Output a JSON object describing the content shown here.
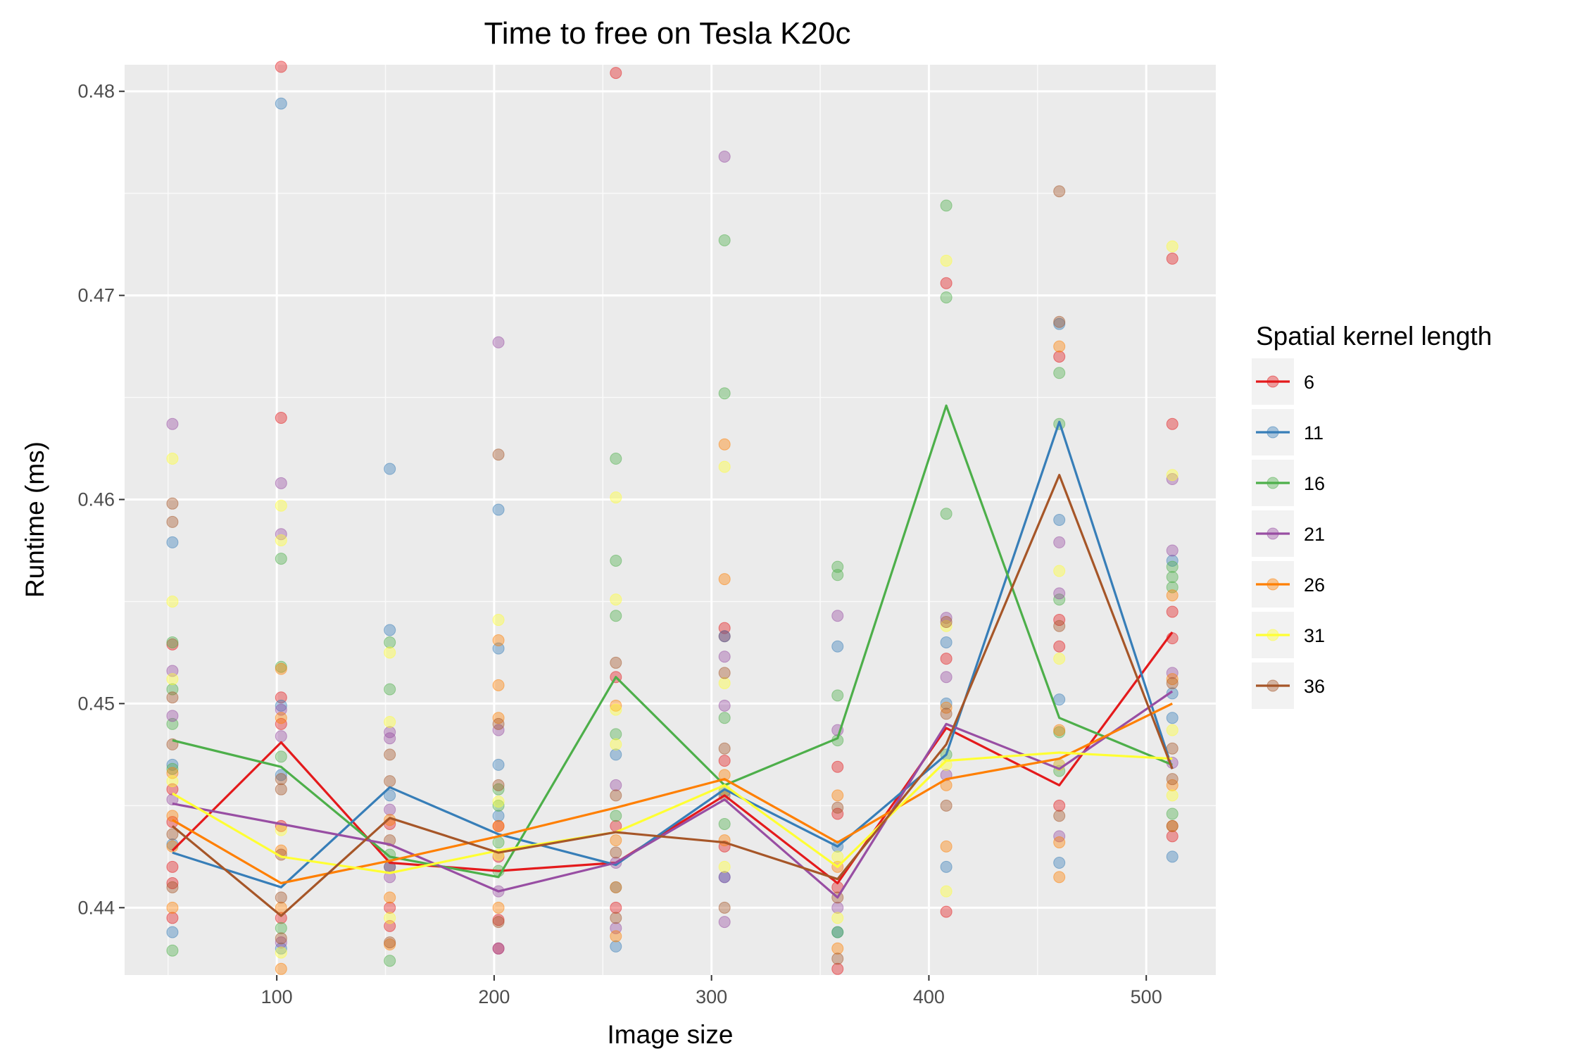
{
  "chart_data": {
    "type": "line",
    "title": "Time to free on Tesla K20c",
    "xlabel": "Image size",
    "ylabel": "Runtime (ms)",
    "xlim": [
      30,
      532
    ],
    "ylim": [
      0.4367,
      0.4813
    ],
    "xticks": [
      100,
      200,
      300,
      400,
      500
    ],
    "yticks": [
      0.44,
      0.45,
      0.46,
      0.47,
      0.48
    ],
    "xtick_labels": [
      "100",
      "200",
      "300",
      "400",
      "500"
    ],
    "ytick_labels": [
      "0.44",
      "0.45",
      "0.46",
      "0.47",
      "0.48"
    ],
    "grid": true,
    "legend": {
      "title": "Spatial kernel length",
      "position": "right"
    },
    "x": [
      52,
      102,
      152,
      202,
      256,
      306,
      358,
      408,
      460,
      512
    ],
    "series": [
      {
        "name": "6",
        "color": "#e41a1c",
        "values": [
          0.4428,
          0.4481,
          0.4422,
          0.4418,
          0.4422,
          0.4455,
          0.4412,
          0.4488,
          0.446,
          0.4535
        ]
      },
      {
        "name": "11",
        "color": "#377eb8",
        "values": [
          0.4427,
          0.441,
          0.4459,
          0.4436,
          0.4421,
          0.4458,
          0.443,
          0.4475,
          0.4638,
          0.4468
        ]
      },
      {
        "name": "16",
        "color": "#4daf4a",
        "values": [
          0.4482,
          0.4469,
          0.4425,
          0.4415,
          0.4513,
          0.446,
          0.4483,
          0.4646,
          0.4493,
          0.447
        ]
      },
      {
        "name": "21",
        "color": "#984ea3",
        "values": [
          0.4451,
          0.4441,
          0.4431,
          0.4408,
          0.4422,
          0.4453,
          0.4405,
          0.449,
          0.4468,
          0.4506
        ]
      },
      {
        "name": "26",
        "color": "#ff7f00",
        "values": [
          0.4443,
          0.4412,
          0.4423,
          0.4435,
          0.4449,
          0.4463,
          0.4432,
          0.4463,
          0.4473,
          0.45
        ]
      },
      {
        "name": "31",
        "color": "#ffff33",
        "values": [
          0.4456,
          0.4425,
          0.4417,
          0.4428,
          0.4437,
          0.446,
          0.442,
          0.4472,
          0.4476,
          0.4473
        ]
      },
      {
        "name": "36",
        "color": "#a65628",
        "values": [
          0.444,
          0.4396,
          0.4444,
          0.4427,
          0.4437,
          0.4432,
          0.4414,
          0.448,
          0.4612,
          0.4468
        ]
      }
    ],
    "points": [
      [
        52,
        0.4395,
        0
      ],
      [
        52,
        0.4412,
        0
      ],
      [
        52,
        0.442,
        0
      ],
      [
        52,
        0.4442,
        0
      ],
      [
        52,
        0.4458,
        0
      ],
      [
        52,
        0.4529,
        0
      ],
      [
        52,
        0.4579,
        1
      ],
      [
        52,
        0.447,
        1
      ],
      [
        52,
        0.4431,
        1
      ],
      [
        52,
        0.4388,
        1
      ],
      [
        52,
        0.453,
        2
      ],
      [
        52,
        0.4507,
        2
      ],
      [
        52,
        0.449,
        2
      ],
      [
        52,
        0.4468,
        2
      ],
      [
        52,
        0.4379,
        2
      ],
      [
        52,
        0.4637,
        3
      ],
      [
        52,
        0.4516,
        3
      ],
      [
        52,
        0.4494,
        3
      ],
      [
        52,
        0.4453,
        3
      ],
      [
        52,
        0.4466,
        4
      ],
      [
        52,
        0.4445,
        4
      ],
      [
        52,
        0.443,
        4
      ],
      [
        52,
        0.44,
        4
      ],
      [
        52,
        0.462,
        5
      ],
      [
        52,
        0.455,
        5
      ],
      [
        52,
        0.4512,
        5
      ],
      [
        52,
        0.4462,
        5
      ],
      [
        52,
        0.4598,
        6
      ],
      [
        52,
        0.4589,
        6
      ],
      [
        52,
        0.4503,
        6
      ],
      [
        52,
        0.448,
        6
      ],
      [
        52,
        0.4436,
        6
      ],
      [
        52,
        0.441,
        6
      ],
      [
        102,
        0.4812,
        0
      ],
      [
        102,
        0.464,
        0
      ],
      [
        102,
        0.4503,
        0
      ],
      [
        102,
        0.449,
        0
      ],
      [
        102,
        0.444,
        0
      ],
      [
        102,
        0.4395,
        0
      ],
      [
        102,
        0.4794,
        1
      ],
      [
        102,
        0.4499,
        1
      ],
      [
        102,
        0.4465,
        1
      ],
      [
        102,
        0.438,
        1
      ],
      [
        102,
        0.4571,
        2
      ],
      [
        102,
        0.4518,
        2
      ],
      [
        102,
        0.4474,
        2
      ],
      [
        102,
        0.439,
        2
      ],
      [
        102,
        0.4608,
        3
      ],
      [
        102,
        0.4583,
        3
      ],
      [
        102,
        0.4497,
        3
      ],
      [
        102,
        0.4484,
        3
      ],
      [
        102,
        0.4383,
        3
      ],
      [
        102,
        0.4517,
        4
      ],
      [
        102,
        0.4493,
        4
      ],
      [
        102,
        0.4428,
        4
      ],
      [
        102,
        0.44,
        4
      ],
      [
        102,
        0.437,
        4
      ],
      [
        102,
        0.4597,
        5
      ],
      [
        102,
        0.458,
        5
      ],
      [
        102,
        0.4438,
        5
      ],
      [
        102,
        0.4378,
        5
      ],
      [
        102,
        0.4463,
        6
      ],
      [
        102,
        0.4458,
        6
      ],
      [
        102,
        0.4426,
        6
      ],
      [
        102,
        0.4405,
        6
      ],
      [
        102,
        0.4385,
        6
      ],
      [
        152,
        0.4441,
        0
      ],
      [
        152,
        0.442,
        0
      ],
      [
        152,
        0.44,
        0
      ],
      [
        152,
        0.4391,
        0
      ],
      [
        152,
        0.4615,
        1
      ],
      [
        152,
        0.4536,
        1
      ],
      [
        152,
        0.4455,
        1
      ],
      [
        152,
        0.442,
        1
      ],
      [
        152,
        0.453,
        2
      ],
      [
        152,
        0.4507,
        2
      ],
      [
        152,
        0.4426,
        2
      ],
      [
        152,
        0.4374,
        2
      ],
      [
        152,
        0.4486,
        3
      ],
      [
        152,
        0.4483,
        3
      ],
      [
        152,
        0.4448,
        3
      ],
      [
        152,
        0.4415,
        3
      ],
      [
        152,
        0.4443,
        4
      ],
      [
        152,
        0.4405,
        4
      ],
      [
        152,
        0.4382,
        4
      ],
      [
        152,
        0.4525,
        5
      ],
      [
        152,
        0.4491,
        5
      ],
      [
        152,
        0.4395,
        5
      ],
      [
        152,
        0.4475,
        6
      ],
      [
        152,
        0.4462,
        6
      ],
      [
        152,
        0.4433,
        6
      ],
      [
        152,
        0.4383,
        6
      ],
      [
        202,
        0.444,
        0
      ],
      [
        202,
        0.4425,
        0
      ],
      [
        202,
        0.4394,
        0
      ],
      [
        202,
        0.438,
        0
      ],
      [
        202,
        0.4595,
        1
      ],
      [
        202,
        0.4527,
        1
      ],
      [
        202,
        0.447,
        1
      ],
      [
        202,
        0.4445,
        1
      ],
      [
        202,
        0.4458,
        2
      ],
      [
        202,
        0.445,
        2
      ],
      [
        202,
        0.4432,
        2
      ],
      [
        202,
        0.4418,
        2
      ],
      [
        202,
        0.4677,
        3
      ],
      [
        202,
        0.4487,
        3
      ],
      [
        202,
        0.4408,
        3
      ],
      [
        202,
        0.438,
        3
      ],
      [
        202,
        0.4531,
        4
      ],
      [
        202,
        0.4509,
        4
      ],
      [
        202,
        0.4493,
        4
      ],
      [
        202,
        0.444,
        4
      ],
      [
        202,
        0.44,
        4
      ],
      [
        202,
        0.4541,
        5
      ],
      [
        202,
        0.4452,
        5
      ],
      [
        202,
        0.4426,
        5
      ],
      [
        202,
        0.4622,
        6
      ],
      [
        202,
        0.449,
        6
      ],
      [
        202,
        0.446,
        6
      ],
      [
        202,
        0.4393,
        6
      ],
      [
        256,
        0.4809,
        0
      ],
      [
        256,
        0.4513,
        0
      ],
      [
        256,
        0.444,
        0
      ],
      [
        256,
        0.44,
        0
      ],
      [
        256,
        0.4475,
        1
      ],
      [
        256,
        0.441,
        1
      ],
      [
        256,
        0.4381,
        1
      ],
      [
        256,
        0.462,
        2
      ],
      [
        256,
        0.457,
        2
      ],
      [
        256,
        0.4543,
        2
      ],
      [
        256,
        0.4485,
        2
      ],
      [
        256,
        0.4445,
        2
      ],
      [
        256,
        0.446,
        3
      ],
      [
        256,
        0.4422,
        3
      ],
      [
        256,
        0.439,
        3
      ],
      [
        256,
        0.4499,
        4
      ],
      [
        256,
        0.4433,
        4
      ],
      [
        256,
        0.441,
        4
      ],
      [
        256,
        0.4386,
        4
      ],
      [
        256,
        0.4601,
        5
      ],
      [
        256,
        0.4551,
        5
      ],
      [
        256,
        0.4497,
        5
      ],
      [
        256,
        0.448,
        5
      ],
      [
        256,
        0.452,
        6
      ],
      [
        256,
        0.4455,
        6
      ],
      [
        256,
        0.4427,
        6
      ],
      [
        256,
        0.4395,
        6
      ],
      [
        306,
        0.4537,
        0
      ],
      [
        306,
        0.4533,
        0
      ],
      [
        306,
        0.4472,
        0
      ],
      [
        306,
        0.443,
        0
      ],
      [
        306,
        0.4533,
        1
      ],
      [
        306,
        0.4457,
        1
      ],
      [
        306,
        0.4415,
        1
      ],
      [
        306,
        0.4727,
        2
      ],
      [
        306,
        0.4652,
        2
      ],
      [
        306,
        0.4493,
        2
      ],
      [
        306,
        0.4441,
        2
      ],
      [
        306,
        0.4768,
        3
      ],
      [
        306,
        0.4523,
        3
      ],
      [
        306,
        0.4499,
        3
      ],
      [
        306,
        0.4415,
        3
      ],
      [
        306,
        0.4393,
        3
      ],
      [
        306,
        0.4627,
        4
      ],
      [
        306,
        0.4561,
        4
      ],
      [
        306,
        0.4465,
        4
      ],
      [
        306,
        0.4433,
        4
      ],
      [
        306,
        0.4616,
        5
      ],
      [
        306,
        0.451,
        5
      ],
      [
        306,
        0.4458,
        5
      ],
      [
        306,
        0.442,
        5
      ],
      [
        306,
        0.4515,
        6
      ],
      [
        306,
        0.4478,
        6
      ],
      [
        306,
        0.4455,
        6
      ],
      [
        306,
        0.44,
        6
      ],
      [
        358,
        0.4469,
        0
      ],
      [
        358,
        0.4446,
        0
      ],
      [
        358,
        0.441,
        0
      ],
      [
        358,
        0.437,
        0
      ],
      [
        358,
        0.4528,
        1
      ],
      [
        358,
        0.443,
        1
      ],
      [
        358,
        0.4388,
        1
      ],
      [
        358,
        0.4567,
        2
      ],
      [
        358,
        0.4563,
        2
      ],
      [
        358,
        0.4504,
        2
      ],
      [
        358,
        0.4482,
        2
      ],
      [
        358,
        0.4388,
        2
      ],
      [
        358,
        0.4543,
        3
      ],
      [
        358,
        0.4487,
        3
      ],
      [
        358,
        0.44,
        3
      ],
      [
        358,
        0.4455,
        4
      ],
      [
        358,
        0.442,
        4
      ],
      [
        358,
        0.438,
        4
      ],
      [
        358,
        0.4425,
        5
      ],
      [
        358,
        0.4395,
        5
      ],
      [
        358,
        0.4449,
        6
      ],
      [
        358,
        0.4405,
        6
      ],
      [
        358,
        0.4375,
        6
      ],
      [
        408,
        0.4706,
        0
      ],
      [
        408,
        0.4522,
        0
      ],
      [
        408,
        0.4398,
        0
      ],
      [
        408,
        0.453,
        1
      ],
      [
        408,
        0.45,
        1
      ],
      [
        408,
        0.442,
        1
      ],
      [
        408,
        0.4744,
        2
      ],
      [
        408,
        0.4699,
        2
      ],
      [
        408,
        0.4593,
        2
      ],
      [
        408,
        0.4475,
        2
      ],
      [
        408,
        0.4542,
        3
      ],
      [
        408,
        0.4513,
        3
      ],
      [
        408,
        0.4465,
        3
      ],
      [
        408,
        0.4498,
        4
      ],
      [
        408,
        0.446,
        4
      ],
      [
        408,
        0.443,
        4
      ],
      [
        408,
        0.4717,
        5
      ],
      [
        408,
        0.4538,
        5
      ],
      [
        408,
        0.447,
        5
      ],
      [
        408,
        0.4408,
        5
      ],
      [
        408,
        0.454,
        6
      ],
      [
        408,
        0.4495,
        6
      ],
      [
        408,
        0.445,
        6
      ],
      [
        460,
        0.467,
        0
      ],
      [
        460,
        0.4541,
        0
      ],
      [
        460,
        0.4528,
        0
      ],
      [
        460,
        0.445,
        0
      ],
      [
        460,
        0.4686,
        1
      ],
      [
        460,
        0.459,
        1
      ],
      [
        460,
        0.4502,
        1
      ],
      [
        460,
        0.4422,
        1
      ],
      [
        460,
        0.4662,
        2
      ],
      [
        460,
        0.4637,
        2
      ],
      [
        460,
        0.4551,
        2
      ],
      [
        460,
        0.4486,
        2
      ],
      [
        460,
        0.4467,
        2
      ],
      [
        460,
        0.4579,
        3
      ],
      [
        460,
        0.4554,
        3
      ],
      [
        460,
        0.447,
        3
      ],
      [
        460,
        0.4435,
        3
      ],
      [
        460,
        0.4675,
        4
      ],
      [
        460,
        0.4487,
        4
      ],
      [
        460,
        0.4432,
        4
      ],
      [
        460,
        0.4415,
        4
      ],
      [
        460,
        0.4565,
        5
      ],
      [
        460,
        0.4522,
        5
      ],
      [
        460,
        0.447,
        5
      ],
      [
        460,
        0.4751,
        6
      ],
      [
        460,
        0.4687,
        6
      ],
      [
        460,
        0.4538,
        6
      ],
      [
        460,
        0.4445,
        6
      ],
      [
        512,
        0.4718,
        0
      ],
      [
        512,
        0.4637,
        0
      ],
      [
        512,
        0.4545,
        0
      ],
      [
        512,
        0.4532,
        0
      ],
      [
        512,
        0.4435,
        0
      ],
      [
        512,
        0.457,
        1
      ],
      [
        512,
        0.4505,
        1
      ],
      [
        512,
        0.4493,
        1
      ],
      [
        512,
        0.4425,
        1
      ],
      [
        512,
        0.4567,
        2
      ],
      [
        512,
        0.4562,
        2
      ],
      [
        512,
        0.4557,
        2
      ],
      [
        512,
        0.4446,
        2
      ],
      [
        512,
        0.461,
        3
      ],
      [
        512,
        0.4575,
        3
      ],
      [
        512,
        0.4515,
        3
      ],
      [
        512,
        0.4471,
        3
      ],
      [
        512,
        0.4553,
        4
      ],
      [
        512,
        0.4512,
        4
      ],
      [
        512,
        0.446,
        4
      ],
      [
        512,
        0.444,
        4
      ],
      [
        512,
        0.4724,
        5
      ],
      [
        512,
        0.4612,
        5
      ],
      [
        512,
        0.4487,
        5
      ],
      [
        512,
        0.4455,
        5
      ],
      [
        512,
        0.451,
        6
      ],
      [
        512,
        0.4478,
        6
      ],
      [
        512,
        0.4463,
        6
      ],
      [
        512,
        0.444,
        6
      ]
    ]
  }
}
